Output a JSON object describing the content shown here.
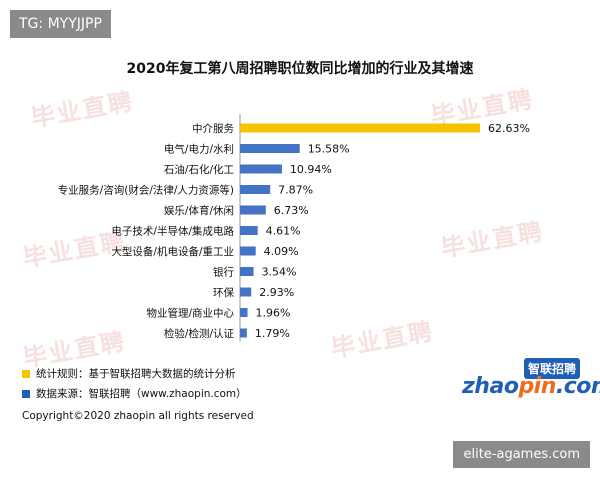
{
  "tag_label": "TG: MYYJJPP",
  "site_label": "elite-agames.com",
  "watermark_text": "毕业直聘",
  "legend": [
    {
      "text": "统计规则：基于智联招聘大数据的统计分析",
      "color": "#f5c400"
    },
    {
      "text": "数据来源：智联招聘（www.zhaopin.com）",
      "color": "#1f5fb4"
    }
  ],
  "copyright": "Copyright©2020 zhaopin all rights reserved",
  "logo": {
    "cn": "智联招聘",
    "en_left": "zhao",
    "en_mid": "pin",
    "en_right": ".com"
  },
  "chart_data": {
    "type": "bar",
    "orientation": "horizontal",
    "title": "2020年复工第八周招聘职位数同比增加的行业及其增速",
    "categories": [
      "中介服务",
      "电气/电力/水利",
      "石油/石化/化工",
      "专业服务/咨询(财会/法律/人力资源等)",
      "娱乐/体育/休闲",
      "电子技术/半导体/集成电路",
      "大型设备/机电设备/重工业",
      "银行",
      "环保",
      "物业管理/商业中心",
      "检验/检测/认证"
    ],
    "values": [
      62.63,
      15.58,
      10.94,
      7.87,
      6.73,
      4.61,
      4.09,
      3.54,
      2.93,
      1.96,
      1.79
    ],
    "value_labels": [
      "62.63%",
      "15.58%",
      "10.94%",
      "7.87%",
      "6.73%",
      "4.61%",
      "4.09%",
      "3.54%",
      "2.93%",
      "1.96%",
      "1.79%"
    ],
    "colors": [
      "#f5c400",
      "#4472c4",
      "#4472c4",
      "#4472c4",
      "#4472c4",
      "#4472c4",
      "#4472c4",
      "#4472c4",
      "#4472c4",
      "#4472c4",
      "#4472c4"
    ],
    "xlim": [
      0,
      62.63
    ],
    "grid": false
  }
}
